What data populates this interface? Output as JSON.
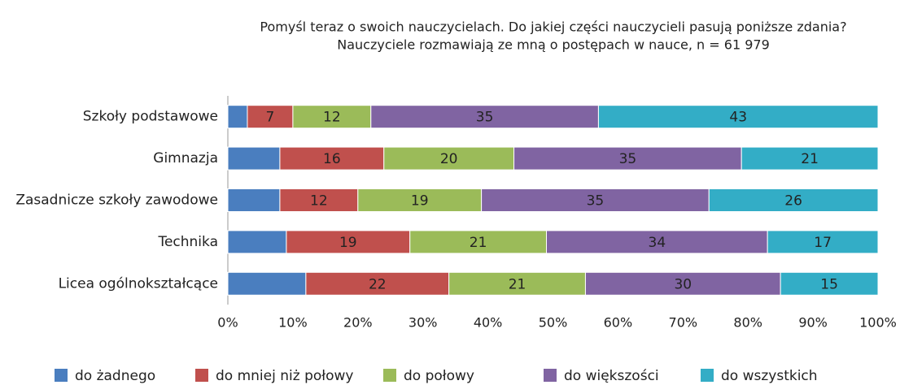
{
  "chart_data": {
    "type": "stacked_barh",
    "title": "Pomyśl teraz o swoich nauczycielach. Do jakiej części nauczycieli pasują poniższe zdania?",
    "subtitle": "Nauczyciele rozmawiają ze mną o postępach w nauce, n = 61 979",
    "categories": [
      "Szkoły podstawowe",
      "Gimnazja",
      "Zasadnicze szkoły zawodowe",
      "Technika",
      "Licea ogólnokształcące"
    ],
    "series": [
      {
        "name": "do żadnego",
        "color": "#4a7ebf",
        "data_labels": false,
        "values": [
          3,
          8,
          8,
          9,
          12
        ]
      },
      {
        "name": "do mniej niż połowy",
        "color": "#c0504d",
        "data_labels": true,
        "values": [
          7,
          16,
          12,
          19,
          22
        ]
      },
      {
        "name": "do połowy",
        "color": "#9bbb59",
        "data_labels": true,
        "values": [
          12,
          20,
          19,
          21,
          21
        ]
      },
      {
        "name": "do większości",
        "color": "#8064a2",
        "data_labels": true,
        "values": [
          35,
          35,
          35,
          34,
          30
        ]
      },
      {
        "name": "do wszystkich",
        "color": "#33adc6",
        "data_labels": true,
        "values": [
          43,
          21,
          26,
          17,
          15
        ]
      }
    ],
    "xlim": [
      0,
      100
    ],
    "xticks": [
      {
        "value": 0,
        "label": "0%"
      },
      {
        "value": 10,
        "label": "10%"
      },
      {
        "value": 20,
        "label": "20%"
      },
      {
        "value": 30,
        "label": "30%"
      },
      {
        "value": 40,
        "label": "40%"
      },
      {
        "value": 50,
        "label": "50%"
      },
      {
        "value": 60,
        "label": "60%"
      },
      {
        "value": 70,
        "label": "70%"
      },
      {
        "value": 80,
        "label": "80%"
      },
      {
        "value": 90,
        "label": "90%"
      },
      {
        "value": 100,
        "label": "100%"
      }
    ],
    "legend": "bottom"
  }
}
